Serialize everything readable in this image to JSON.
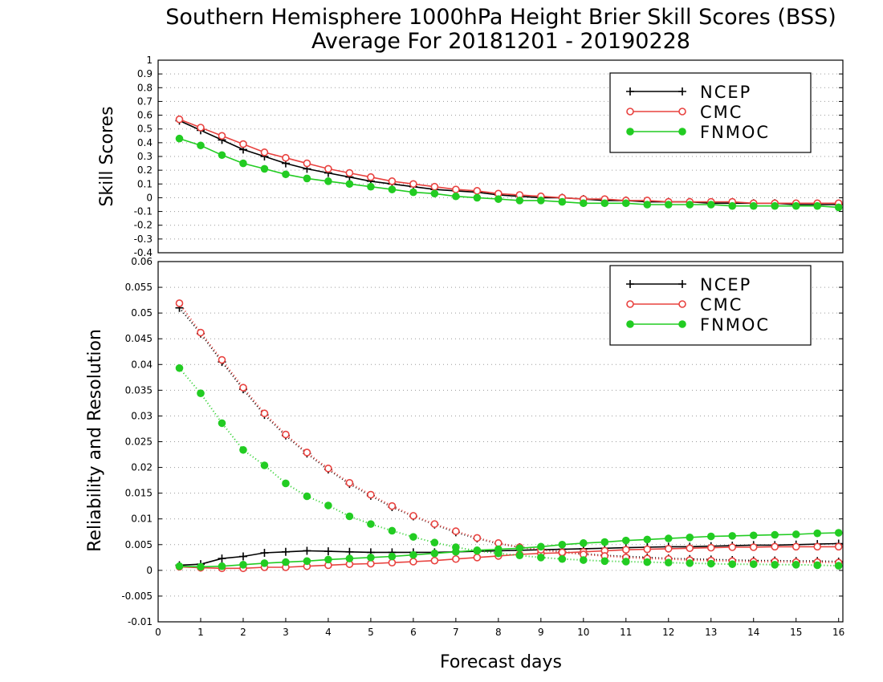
{
  "chart_data": {
    "type": "line",
    "title": "Southern Hemisphere 1000hPa Height Brier Skill Scores (BSS)",
    "subtitle": "Average For 20181201 - 20190228",
    "xlabel": "Forecast days",
    "x_ticks": [
      "0",
      "1",
      "2",
      "3",
      "4",
      "5",
      "6",
      "7",
      "8",
      "9",
      "10",
      "11",
      "12",
      "13",
      "14",
      "15",
      "16"
    ],
    "xlim": [
      0,
      16.1
    ],
    "x": [
      0.5,
      1,
      1.5,
      2,
      2.5,
      3,
      3.5,
      4,
      4.5,
      5,
      5.5,
      6,
      6.5,
      7,
      7.5,
      8,
      8.5,
      9,
      9.5,
      10,
      10.5,
      11,
      11.5,
      12,
      12.5,
      13,
      13.5,
      14,
      14.5,
      15,
      15.5,
      16
    ],
    "colors": {
      "NCEP": "#000000",
      "CMC": "#e8423f",
      "FNMOC": "#22cc22"
    },
    "panels": [
      {
        "ylabel": "Skill Scores",
        "ylim": [
          -0.4,
          1
        ],
        "y_ticks": [
          "1",
          "0.9",
          "0.8",
          "0.7",
          "0.6",
          "0.5",
          "0.4",
          "0.3",
          "0.2",
          "0.1",
          "0",
          "-0.1",
          "-0.2",
          "-0.3",
          "-0.4"
        ],
        "grid": true,
        "legend": "top-right",
        "legend_items": [
          "NCEP",
          "CMC",
          "FNMOC"
        ],
        "series": [
          {
            "name": "NCEP",
            "marker": "plus",
            "style": "solid",
            "values": [
              0.56,
              0.49,
              0.42,
              0.35,
              0.3,
              0.25,
              0.21,
              0.18,
              0.15,
              0.12,
              0.1,
              0.08,
              0.06,
              0.05,
              0.04,
              0.02,
              0.01,
              0.0,
              0.0,
              -0.01,
              -0.02,
              -0.02,
              -0.03,
              -0.03,
              -0.03,
              -0.04,
              -0.04,
              -0.04,
              -0.04,
              -0.05,
              -0.05,
              -0.05
            ]
          },
          {
            "name": "CMC",
            "marker": "circle-open",
            "style": "solid",
            "values": [
              0.57,
              0.51,
              0.45,
              0.39,
              0.33,
              0.29,
              0.25,
              0.21,
              0.18,
              0.15,
              0.12,
              0.1,
              0.08,
              0.06,
              0.05,
              0.03,
              0.02,
              0.01,
              0.0,
              -0.01,
              -0.01,
              -0.02,
              -0.02,
              -0.03,
              -0.03,
              -0.03,
              -0.03,
              -0.04,
              -0.04,
              -0.04,
              -0.04,
              -0.04
            ]
          },
          {
            "name": "FNMOC",
            "marker": "circle-filled",
            "style": "solid",
            "values": [
              0.43,
              0.38,
              0.31,
              0.25,
              0.21,
              0.17,
              0.14,
              0.12,
              0.1,
              0.08,
              0.06,
              0.04,
              0.03,
              0.01,
              0.0,
              -0.01,
              -0.02,
              -0.02,
              -0.03,
              -0.04,
              -0.04,
              -0.04,
              -0.05,
              -0.05,
              -0.05,
              -0.05,
              -0.06,
              -0.06,
              -0.06,
              -0.06,
              -0.06,
              -0.07
            ]
          }
        ]
      },
      {
        "ylabel": "Reliability and Resolution",
        "ylim": [
          -0.01,
          0.06
        ],
        "y_ticks": [
          "0.06",
          "0.055",
          "0.05",
          "0.045",
          "0.04",
          "0.035",
          "0.03",
          "0.025",
          "0.02",
          "0.015",
          "0.01",
          "0.005",
          "0",
          "-0.005",
          "-0.01"
        ],
        "grid": true,
        "legend": "top-right",
        "legend_items": [
          "NCEP",
          "CMC",
          "FNMOC"
        ],
        "series": [
          {
            "name": "NCEP",
            "metric": "reliability",
            "marker": "plus",
            "style": "solid",
            "values": [
              0.001,
              0.0012,
              0.0023,
              0.0027,
              0.0034,
              0.0036,
              0.0038,
              0.0037,
              0.0036,
              0.0035,
              0.0035,
              0.0035,
              0.0035,
              0.0036,
              0.0037,
              0.0038,
              0.0039,
              0.004,
              0.0041,
              0.0042,
              0.0043,
              0.0044,
              0.0045,
              0.0046,
              0.0046,
              0.0047,
              0.0048,
              0.0049,
              0.0049,
              0.005,
              0.0051,
              0.0052
            ]
          },
          {
            "name": "NCEP",
            "metric": "resolution",
            "marker": "plus",
            "style": "dotted",
            "values": [
              0.051,
              0.046,
              0.0405,
              0.0352,
              0.0302,
              0.0262,
              0.0227,
              0.0196,
              0.0168,
              0.0145,
              0.0123,
              0.0105,
              0.0089,
              0.0074,
              0.0062,
              0.0052,
              0.0045,
              0.004,
              0.0036,
              0.0032,
              0.0029,
              0.0027,
              0.0025,
              0.0023,
              0.0022,
              0.0021,
              0.002,
              0.0019,
              0.0019,
              0.0018,
              0.0018,
              0.0017
            ]
          },
          {
            "name": "CMC",
            "metric": "reliability",
            "marker": "circle-open",
            "style": "solid",
            "values": [
              0.0007,
              0.0005,
              0.0004,
              0.0004,
              0.0006,
              0.0006,
              0.0008,
              0.001,
              0.0012,
              0.0013,
              0.0015,
              0.0017,
              0.0019,
              0.0022,
              0.0025,
              0.0028,
              0.0031,
              0.0033,
              0.0034,
              0.0036,
              0.0038,
              0.004,
              0.0041,
              0.0042,
              0.0043,
              0.0044,
              0.0045,
              0.0045,
              0.0046,
              0.0046,
              0.0046,
              0.0046
            ]
          },
          {
            "name": "CMC",
            "metric": "resolution",
            "marker": "circle-open",
            "style": "dotted",
            "values": [
              0.0519,
              0.0462,
              0.0409,
              0.0355,
              0.0305,
              0.0264,
              0.0229,
              0.0198,
              0.017,
              0.0147,
              0.0125,
              0.0106,
              0.009,
              0.0076,
              0.0063,
              0.0053,
              0.0045,
              0.004,
              0.0035,
              0.0031,
              0.0028,
              0.0025,
              0.0023,
              0.0022,
              0.002,
              0.0019,
              0.0018,
              0.0017,
              0.0017,
              0.0016,
              0.0016,
              0.0015
            ]
          },
          {
            "name": "FNMOC",
            "metric": "reliability",
            "marker": "circle-filled",
            "style": "solid",
            "values": [
              0.0008,
              0.0007,
              0.0008,
              0.0011,
              0.0014,
              0.0016,
              0.0018,
              0.0021,
              0.0023,
              0.0025,
              0.0027,
              0.003,
              0.0033,
              0.0036,
              0.0039,
              0.0041,
              0.0043,
              0.0046,
              0.005,
              0.0053,
              0.0055,
              0.0058,
              0.006,
              0.0062,
              0.0064,
              0.0066,
              0.0067,
              0.0068,
              0.0069,
              0.007,
              0.0072,
              0.0073
            ]
          },
          {
            "name": "FNMOC",
            "metric": "resolution",
            "marker": "circle-filled",
            "style": "dotted",
            "values": [
              0.0393,
              0.0344,
              0.0286,
              0.0234,
              0.0204,
              0.0169,
              0.0144,
              0.0126,
              0.0105,
              0.009,
              0.0077,
              0.0065,
              0.0054,
              0.0045,
              0.0038,
              0.0033,
              0.0029,
              0.0025,
              0.0022,
              0.002,
              0.0018,
              0.0017,
              0.0016,
              0.0015,
              0.0014,
              0.0013,
              0.0012,
              0.0012,
              0.0011,
              0.0011,
              0.001,
              0.0009
            ]
          }
        ]
      }
    ]
  }
}
